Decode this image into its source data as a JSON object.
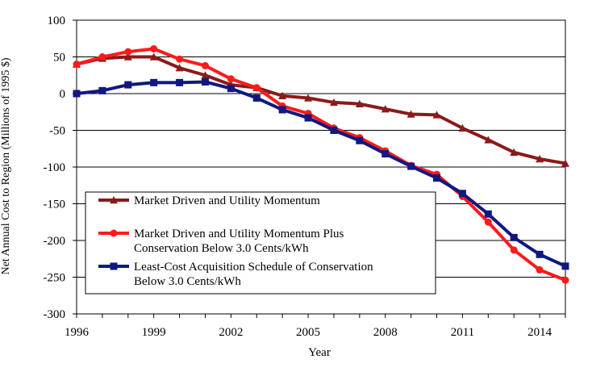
{
  "chart_data": {
    "type": "line",
    "xlabel": "Year",
    "ylabel": "Net Annual Cost to Region (Millions of 1995 $)",
    "ylim": [
      -300,
      100
    ],
    "xlim": [
      1996,
      2015
    ],
    "x": [
      1996,
      1997,
      1998,
      1999,
      2000,
      2001,
      2002,
      2003,
      2004,
      2005,
      2006,
      2007,
      2008,
      2009,
      2010,
      2011,
      2012,
      2013,
      2014,
      2015
    ],
    "x_ticks": [
      1996,
      1999,
      2002,
      2005,
      2008,
      2011,
      2014
    ],
    "x_tick_labels": [
      "1996",
      "1999",
      "2002",
      "2005",
      "2008",
      "2011",
      "2014"
    ],
    "y_ticks": [
      100,
      50,
      0,
      -50,
      -100,
      -150,
      -200,
      -250,
      -300
    ],
    "y_tick_labels": [
      "100",
      "50",
      "0",
      "-50",
      "-100",
      "-150",
      "-200",
      "-250",
      "-300"
    ],
    "grid": "horizontal",
    "legend_position": "lower-left inside plot",
    "series": [
      {
        "name": "Market Driven and Utility Momentum",
        "legend_lines": [
          "Market Driven and Utility Momentum"
        ],
        "color": "#8b1a1a",
        "marker": "triangle",
        "values": [
          40,
          48,
          50,
          50,
          35,
          25,
          12,
          8,
          -3,
          -6,
          -12,
          -14,
          -21,
          -28,
          -29,
          -47,
          -63,
          -80,
          -89,
          -95
        ]
      },
      {
        "name": "Market Driven and Utility Momentum Plus Conservation Below 3.0 Cents/kWh",
        "legend_lines": [
          "Market Driven and Utility Momentum Plus",
          "Conservation Below 3.0 Cents/kWh"
        ],
        "color": "#ff1a1a",
        "marker": "circle",
        "values": [
          40,
          50,
          57,
          61,
          47,
          38,
          20,
          8,
          -17,
          -27,
          -47,
          -60,
          -78,
          -98,
          -110,
          -140,
          -175,
          -213,
          -240,
          -254
        ]
      },
      {
        "name": "Least-Cost Acquisition Schedule of Conservation Below 3.0 Cents/kWh",
        "legend_lines": [
          "Least-Cost Acquisition Schedule of Conservation",
          "Below 3.0 Cents/kWh"
        ],
        "color": "#101880",
        "marker": "square",
        "values": [
          0,
          4,
          12,
          15,
          15,
          16,
          7,
          -6,
          -22,
          -33,
          -50,
          -64,
          -82,
          -99,
          -115,
          -136,
          -164,
          -196,
          -219,
          -235
        ]
      }
    ]
  }
}
